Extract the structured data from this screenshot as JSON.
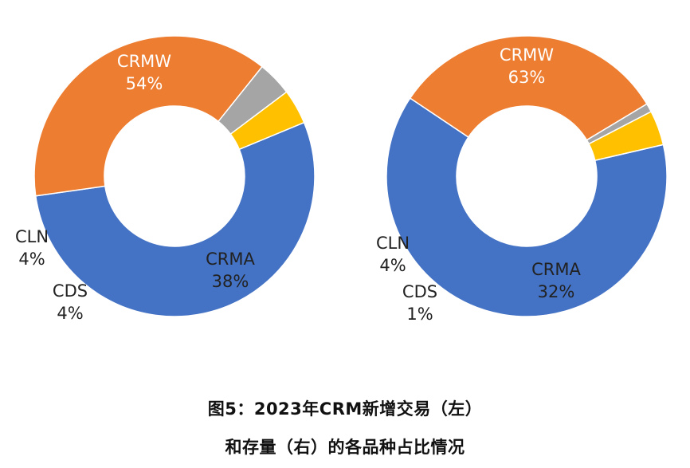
{
  "caption": {
    "line1": "图5：2023年CRM新增交易（左）",
    "line2": "和存量（右）的各品种占比情况"
  },
  "colors": {
    "CRMW": "#4472C4",
    "CRMA": "#ED7D31",
    "CDS": "#A5A5A5",
    "CLN": "#FFC000"
  },
  "chart_data": [
    {
      "type": "pie",
      "donut": true,
      "title": "",
      "slices": [
        {
          "name": "CRMW",
          "label": "54%",
          "value": 54
        },
        {
          "name": "CRMA",
          "label": "38%",
          "value": 38
        },
        {
          "name": "CDS",
          "label": "4%",
          "value": 4
        },
        {
          "name": "CLN",
          "label": "4%",
          "value": 4
        }
      ]
    },
    {
      "type": "pie",
      "donut": true,
      "title": "",
      "slices": [
        {
          "name": "CRMW",
          "label": "63%",
          "value": 63
        },
        {
          "name": "CRMA",
          "label": "32%",
          "value": 32
        },
        {
          "name": "CDS",
          "label": "1%",
          "value": 1
        },
        {
          "name": "CLN",
          "label": "4%",
          "value": 4
        }
      ]
    }
  ]
}
